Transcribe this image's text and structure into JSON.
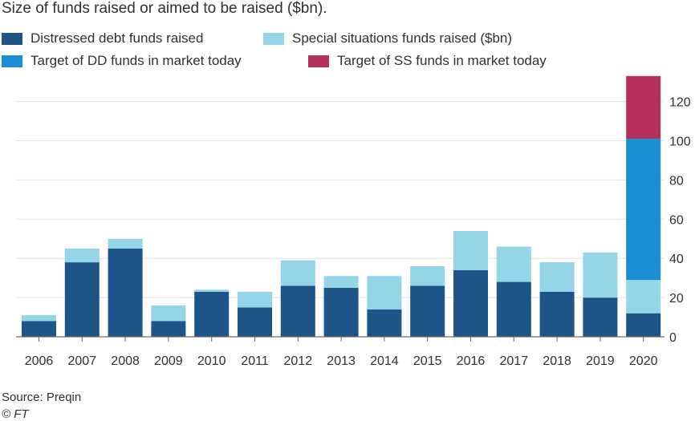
{
  "title": "Size of funds raised or aimed to be raised ($bn).",
  "colors": {
    "dd_raised": "#1f5489",
    "ss_raised": "#94d5e8",
    "dd_target": "#1b8ed2",
    "ss_target": "#b5305b",
    "grid": "#e6e4e1",
    "axis": "#6f6a66",
    "text": "#33302e"
  },
  "legend": [
    {
      "label": "Distressed debt funds raised",
      "color_key": "dd_raised"
    },
    {
      "label": "Special situations funds raised ($bn)",
      "color_key": "ss_raised"
    },
    {
      "label": "Target of DD funds in market today",
      "color_key": "dd_target"
    },
    {
      "label": "Target of SS funds in market today",
      "color_key": "ss_target"
    }
  ],
  "chart_data": {
    "type": "bar",
    "stacked": true,
    "categories": [
      "2006",
      "2007",
      "2008",
      "2009",
      "2010",
      "2011",
      "2012",
      "2013",
      "2014",
      "2015",
      "2016",
      "2017",
      "2018",
      "2019",
      "2020"
    ],
    "series": [
      {
        "name": "Distressed debt funds raised",
        "color_key": "dd_raised",
        "values": [
          8,
          38,
          45,
          8,
          23,
          15,
          26,
          25,
          14,
          26,
          34,
          28,
          23,
          20,
          12
        ]
      },
      {
        "name": "Special situations funds raised ($bn)",
        "color_key": "ss_raised",
        "values": [
          3,
          7,
          5,
          8,
          1,
          8,
          13,
          6,
          17,
          10,
          20,
          18,
          15,
          23,
          17
        ]
      },
      {
        "name": "Target of DD funds in market today",
        "color_key": "dd_target",
        "values": [
          0,
          0,
          0,
          0,
          0,
          0,
          0,
          0,
          0,
          0,
          0,
          0,
          0,
          0,
          72
        ]
      },
      {
        "name": "Target of SS funds in market today",
        "color_key": "ss_target",
        "values": [
          0,
          0,
          0,
          0,
          0,
          0,
          0,
          0,
          0,
          0,
          0,
          0,
          0,
          0,
          32
        ]
      }
    ],
    "yticks": [
      0,
      20,
      40,
      60,
      80,
      100,
      120
    ],
    "ylim": [
      0,
      133
    ],
    "y_axis_side": "right",
    "grid": true,
    "legend_position": "top"
  },
  "footer": {
    "source": "Source: Preqin",
    "credit": "© FT"
  }
}
